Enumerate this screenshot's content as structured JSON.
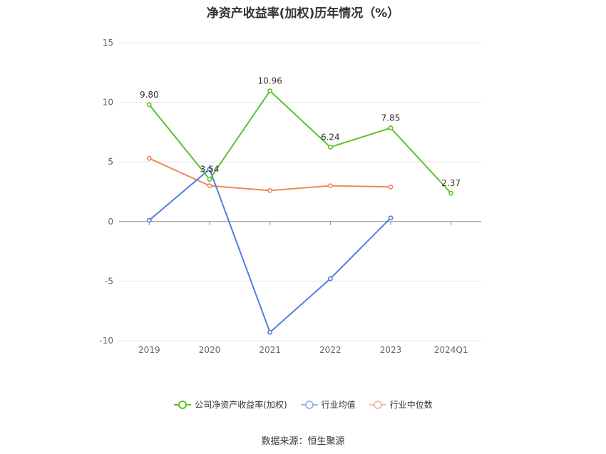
{
  "title": "净资产收益率(加权)历年情况（%）",
  "source": "数据来源：恒生聚源",
  "chart_data": {
    "type": "line",
    "categories": [
      "2019",
      "2020",
      "2021",
      "2022",
      "2023",
      "2024Q1"
    ],
    "ylim": [
      -10,
      15
    ],
    "yticks": [
      -10,
      -5,
      0,
      5,
      10,
      15
    ],
    "grid": true,
    "legend_position": "bottom",
    "series": [
      {
        "name": "公司净资产收益率(加权)",
        "color": "#5cc22f",
        "values": [
          9.8,
          3.54,
          10.96,
          6.24,
          7.85,
          2.37
        ],
        "labels": [
          "9.80",
          "3.54",
          "10.96",
          "6.24",
          "7.85",
          "2.37"
        ]
      },
      {
        "name": "行业均值",
        "color": "#4f7fe0",
        "values": [
          0.1,
          4.4,
          -9.3,
          -4.8,
          0.3,
          null
        ]
      },
      {
        "name": "行业中位数",
        "color": "#f0885a",
        "values": [
          5.3,
          3.0,
          2.6,
          3.0,
          2.9,
          null
        ]
      }
    ]
  }
}
